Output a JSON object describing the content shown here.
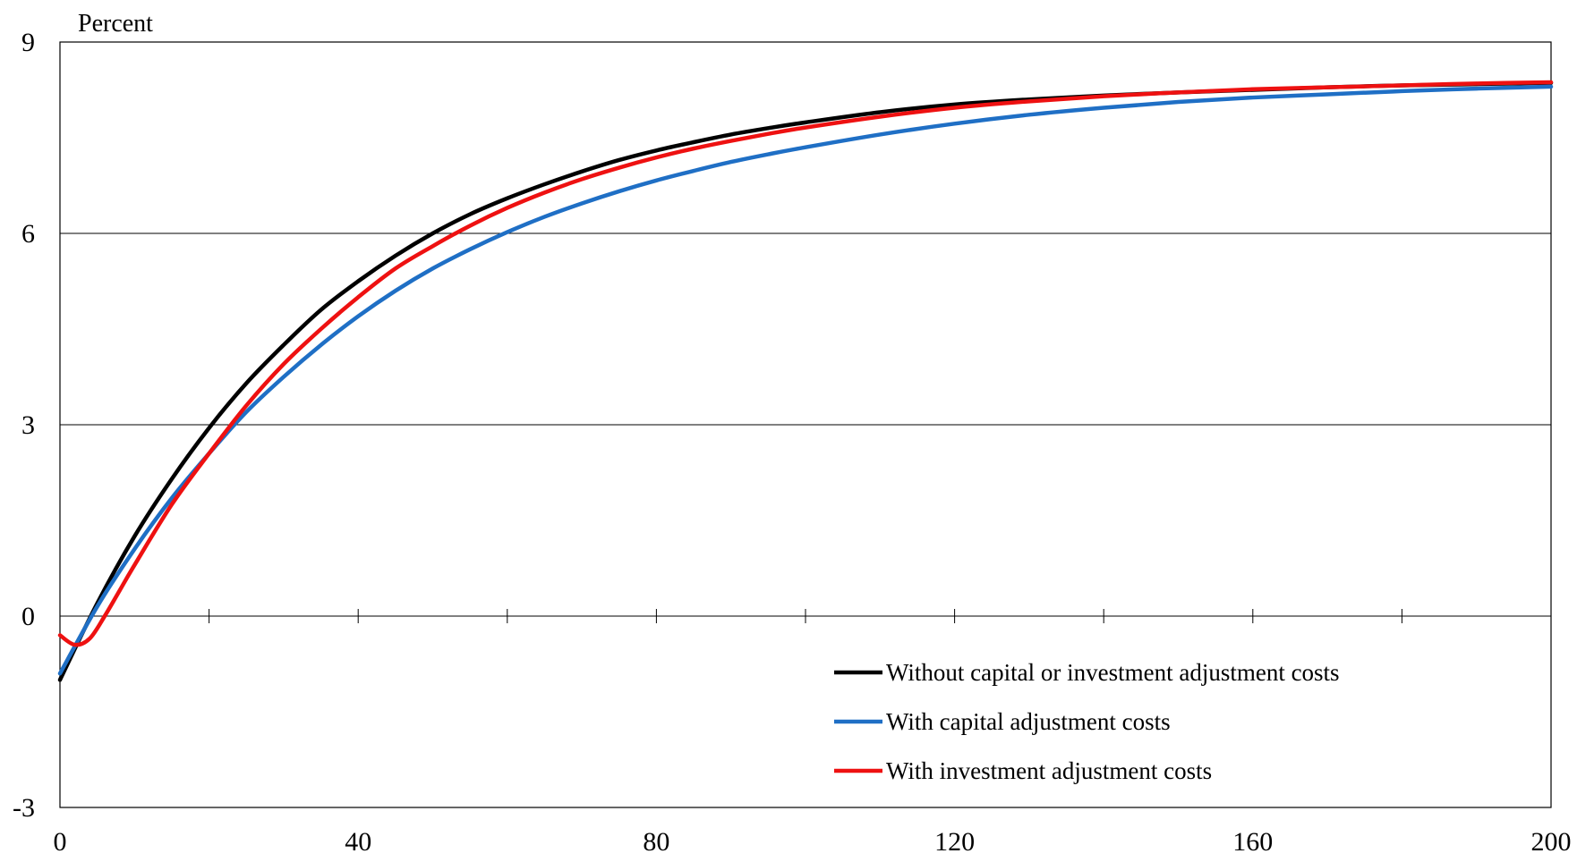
{
  "chart_data": {
    "type": "line",
    "title": "",
    "xlabel": "",
    "ylabel": "Percent",
    "xlim": [
      0,
      200
    ],
    "ylim": [
      -3,
      9
    ],
    "x_ticks": [
      0,
      40,
      80,
      120,
      160,
      200
    ],
    "x_minor_ticks": [
      20,
      40,
      60,
      80,
      100,
      120,
      140,
      160,
      180
    ],
    "y_ticks": [
      -3,
      0,
      3,
      6,
      9
    ],
    "grid": "horizontal",
    "legend_position": "bottom-right",
    "series": [
      {
        "name": "Without capital or investment adjustment costs",
        "color": "#000000",
        "x": [
          0,
          5,
          10,
          15,
          20,
          25,
          30,
          35,
          40,
          45,
          50,
          55,
          60,
          65,
          70,
          75,
          80,
          85,
          90,
          95,
          100,
          110,
          120,
          130,
          140,
          150,
          160,
          170,
          180,
          190,
          200
        ],
        "y": [
          -1.0,
          0.2,
          1.25,
          2.15,
          2.95,
          3.65,
          4.25,
          4.8,
          5.25,
          5.65,
          6.0,
          6.3,
          6.55,
          6.77,
          6.97,
          7.15,
          7.3,
          7.43,
          7.55,
          7.65,
          7.74,
          7.9,
          8.02,
          8.1,
          8.16,
          8.21,
          8.25,
          8.29,
          8.32,
          8.34,
          8.36
        ]
      },
      {
        "name": "With capital adjustment costs",
        "color": "#1f6fc5",
        "x": [
          0,
          5,
          10,
          15,
          20,
          25,
          30,
          35,
          40,
          45,
          50,
          55,
          60,
          65,
          70,
          75,
          80,
          85,
          90,
          95,
          100,
          110,
          120,
          130,
          140,
          150,
          160,
          170,
          180,
          190,
          200
        ],
        "y": [
          -0.9,
          0.15,
          1.05,
          1.85,
          2.55,
          3.2,
          3.75,
          4.25,
          4.7,
          5.1,
          5.45,
          5.75,
          6.02,
          6.26,
          6.47,
          6.66,
          6.83,
          6.98,
          7.12,
          7.24,
          7.35,
          7.55,
          7.72,
          7.86,
          7.97,
          8.06,
          8.13,
          8.18,
          8.23,
          8.27,
          8.3
        ]
      },
      {
        "name": "With investment adjustment costs",
        "color": "#ee1111",
        "x": [
          0,
          2,
          4,
          6,
          8,
          10,
          15,
          20,
          25,
          30,
          35,
          40,
          45,
          50,
          55,
          60,
          65,
          70,
          75,
          80,
          85,
          90,
          95,
          100,
          110,
          120,
          130,
          140,
          150,
          160,
          170,
          180,
          190,
          200
        ],
        "y": [
          -0.3,
          -0.45,
          -0.35,
          0.0,
          0.4,
          0.8,
          1.75,
          2.55,
          3.3,
          3.95,
          4.5,
          5.0,
          5.45,
          5.8,
          6.12,
          6.4,
          6.64,
          6.85,
          7.03,
          7.19,
          7.33,
          7.45,
          7.56,
          7.66,
          7.83,
          7.97,
          8.07,
          8.15,
          8.21,
          8.26,
          8.29,
          8.32,
          8.35,
          8.37
        ]
      }
    ]
  }
}
